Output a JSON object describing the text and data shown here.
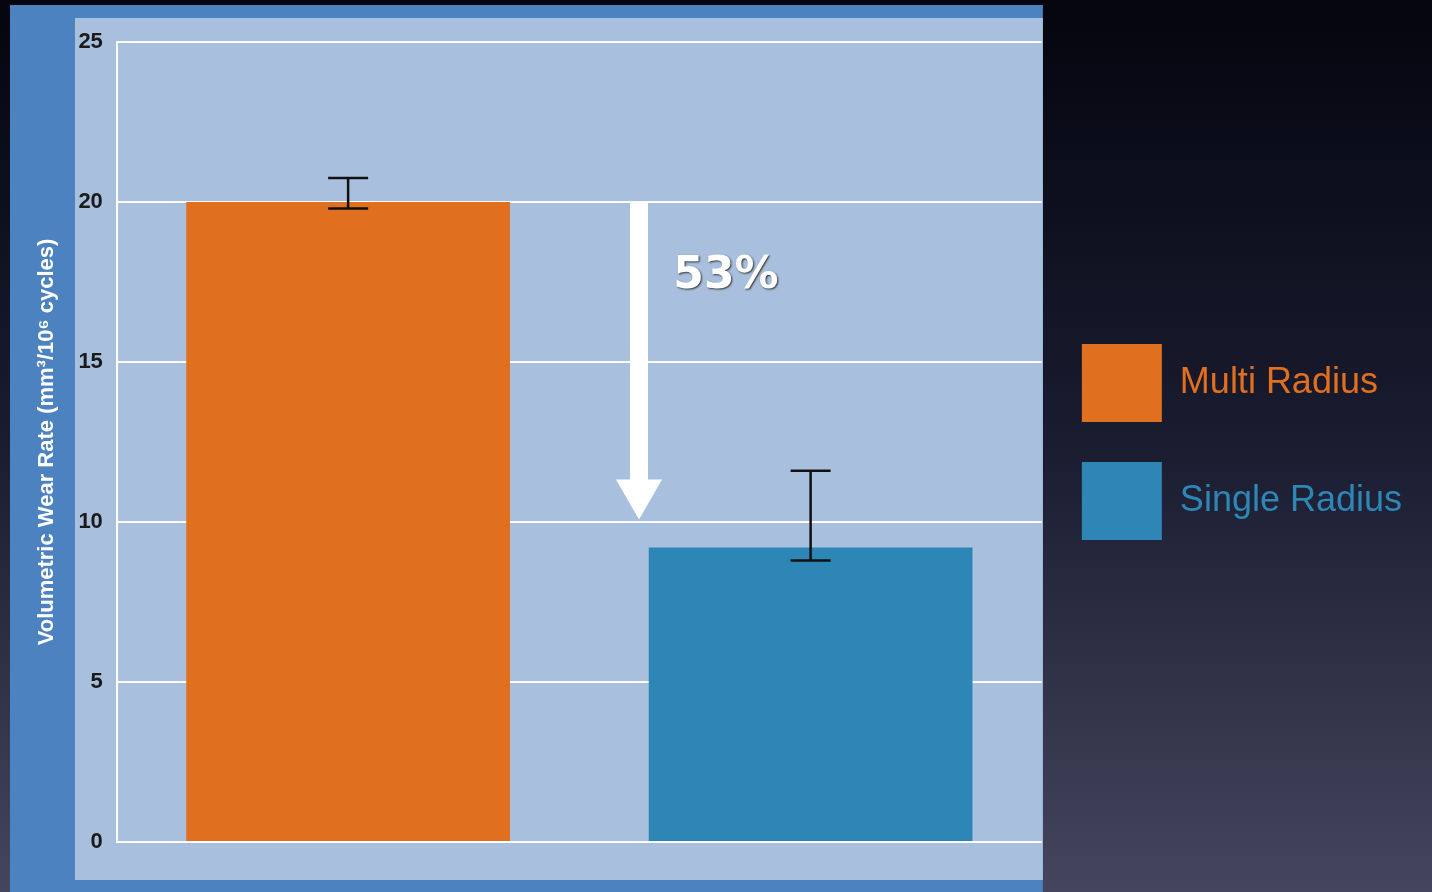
{
  "chart_data": {
    "type": "bar",
    "ylabel": "Volumetric Wear Rate (mm³/10⁶ cycles)",
    "categories": [
      null,
      null
    ],
    "series": [
      {
        "name": "Multi Radius",
        "color": "#e06f1f",
        "values": [
          20,
          null
        ],
        "errors": [
          [
            19.8,
            20.75
          ],
          null
        ]
      },
      {
        "name": "Single Radius",
        "color": "#2e86b7",
        "values": [
          null,
          9.2
        ],
        "errors": [
          null,
          [
            8.8,
            11.6
          ]
        ]
      }
    ],
    "ylim": [
      0,
      25
    ],
    "yticks": [
      0,
      5,
      10,
      15,
      20,
      25
    ],
    "grid": "y",
    "legend": "right",
    "tick_labels": "y",
    "annotations": [
      "53%"
    ]
  }
}
